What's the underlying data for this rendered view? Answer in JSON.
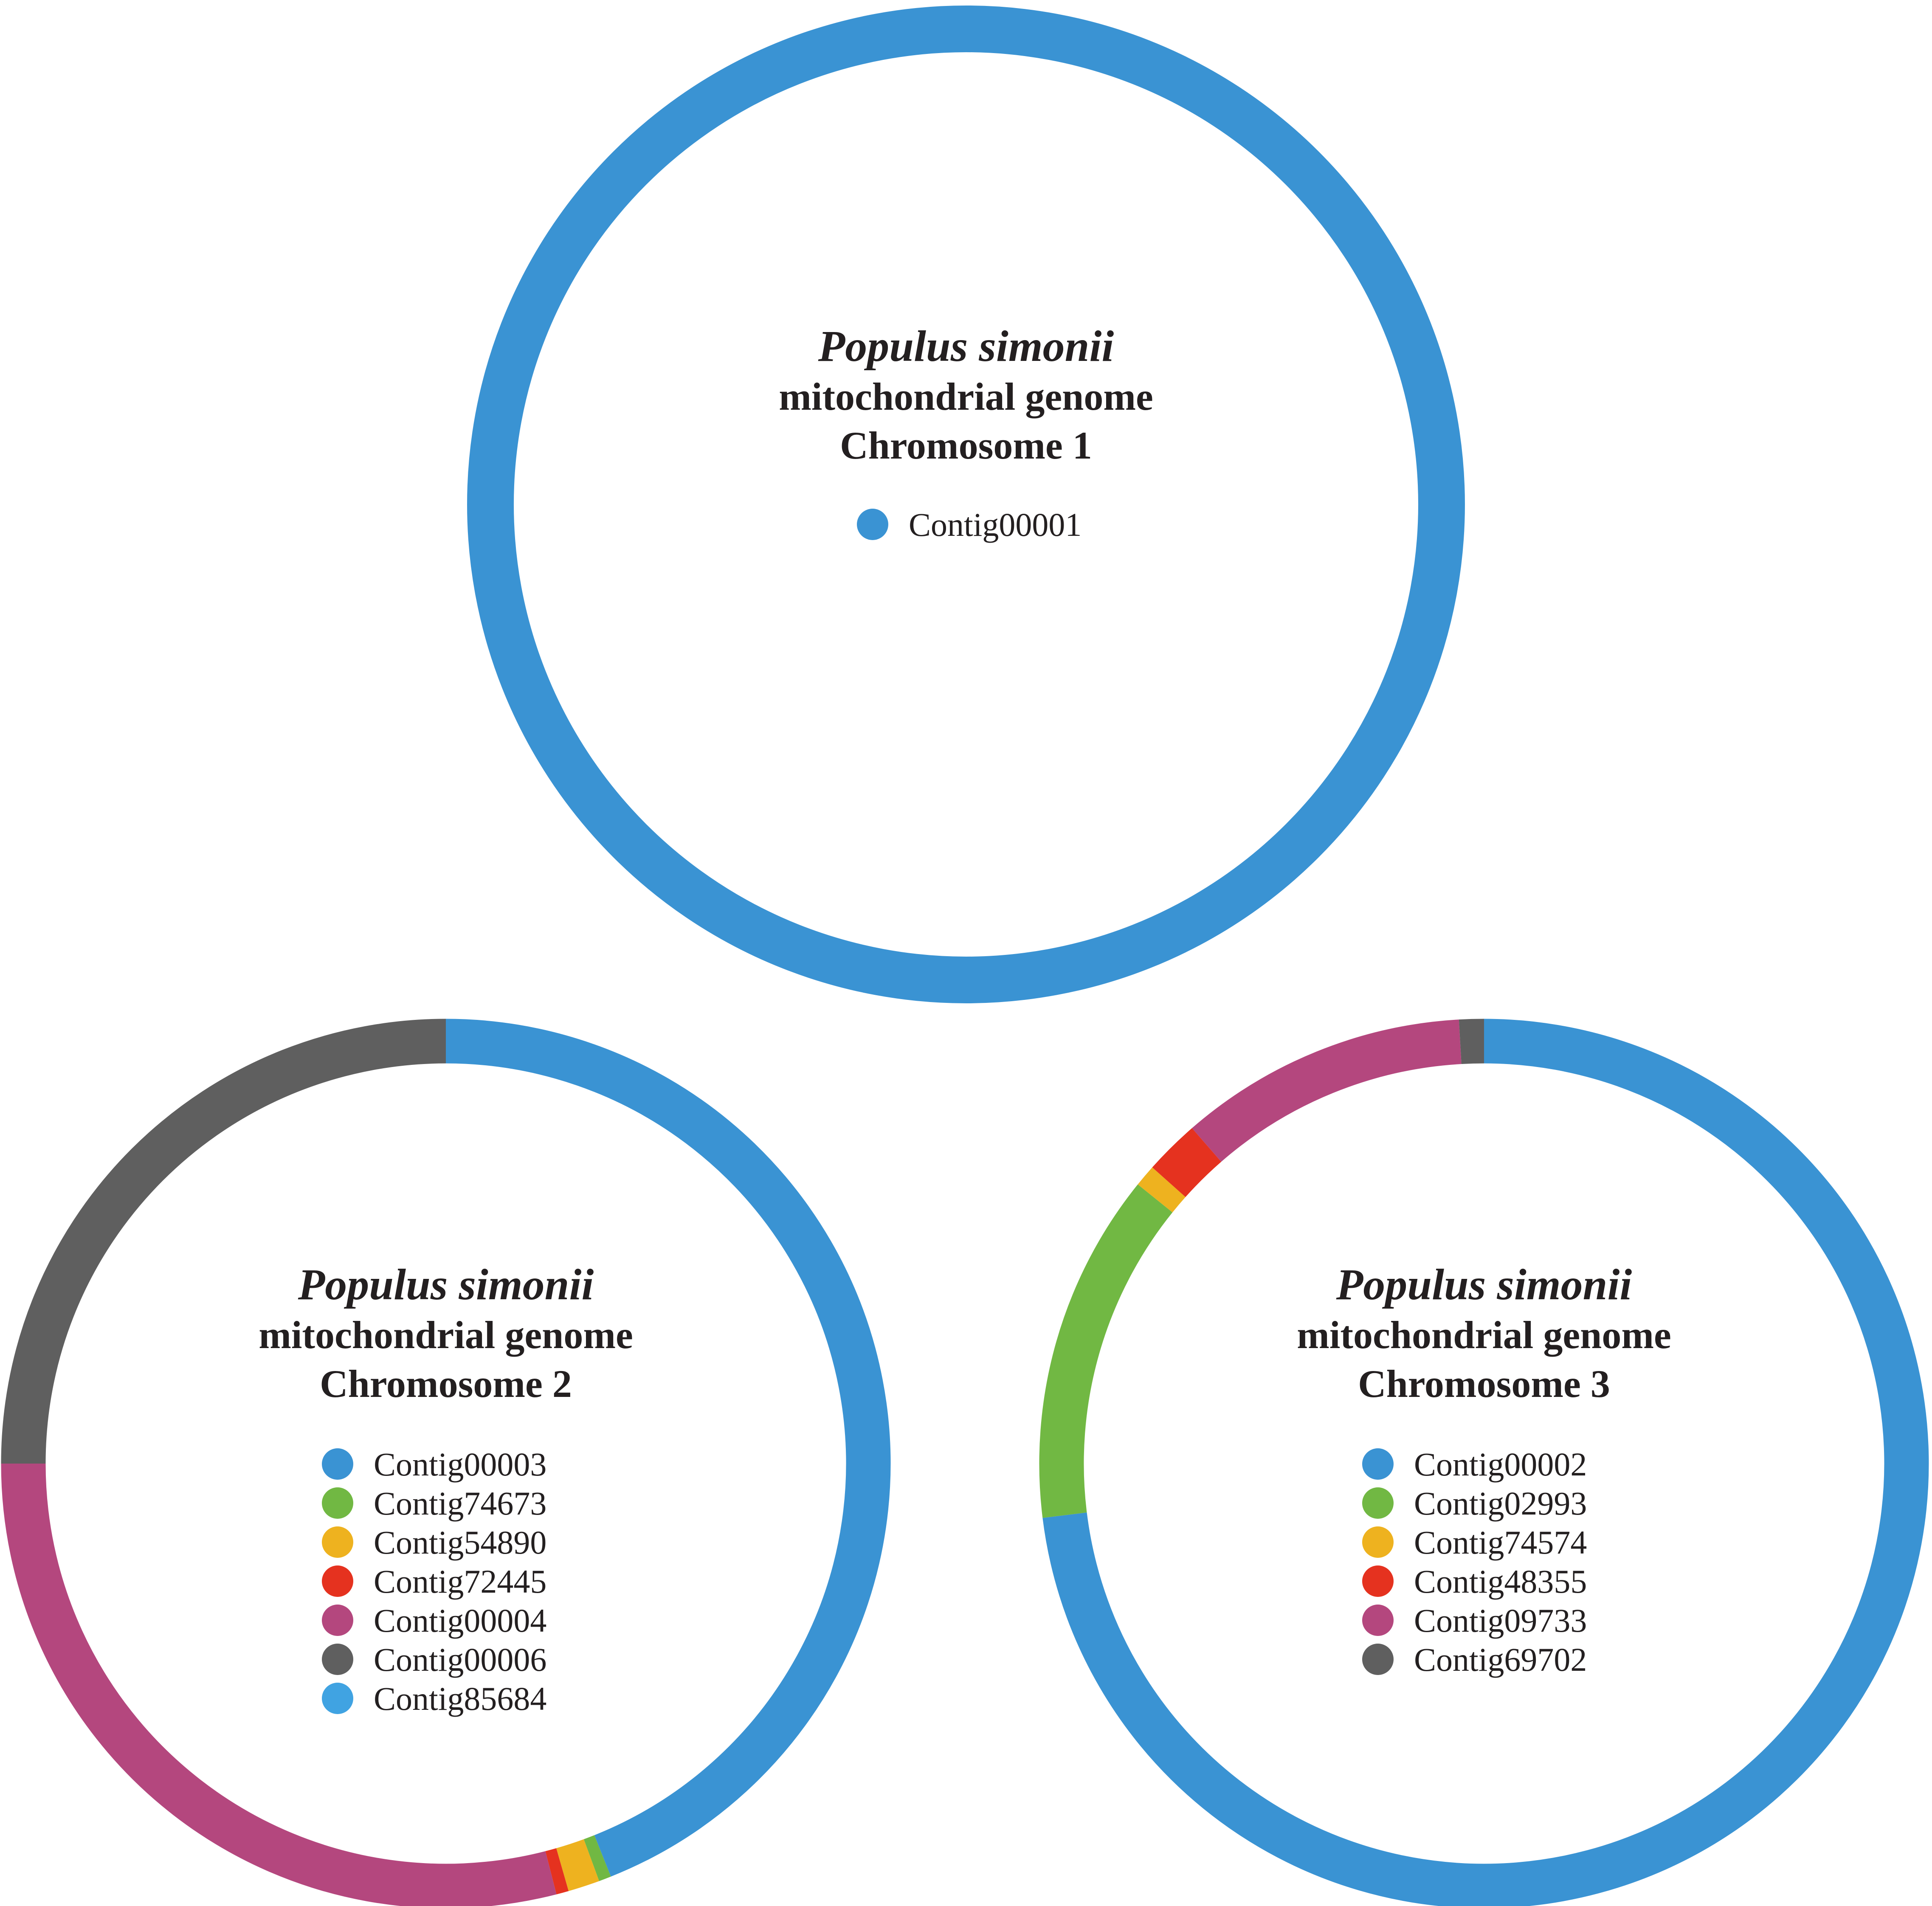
{
  "chart_data": [
    {
      "type": "pie",
      "title": "Populus simonii",
      "subtitle_lines": [
        "mitochondrial genome",
        "Chromosome 1"
      ],
      "legend": [
        {
          "name": "Contig00001",
          "color": "#3a93d3"
        }
      ],
      "segments": [
        {
          "name": "Contig00001",
          "fraction": 1.0,
          "color": "#3a93d3"
        }
      ]
    },
    {
      "type": "pie",
      "title": "Populus simonii",
      "subtitle_lines": [
        "mitochondrial genome",
        "Chromosome 2"
      ],
      "legend": [
        {
          "name": "Contig00003",
          "color": "#3a93d3"
        },
        {
          "name": "Contig74673",
          "color": "#71b843"
        },
        {
          "name": "Contig54890",
          "color": "#eeb21f"
        },
        {
          "name": "Contig72445",
          "color": "#e5321f"
        },
        {
          "name": "Contig00004",
          "color": "#b4477e"
        },
        {
          "name": "Contig00006",
          "color": "#5f5f5f"
        },
        {
          "name": "Contig85684",
          "color": "#40a3e2"
        }
      ],
      "segments": [
        {
          "name": "Contig00003",
          "fraction": 0.4395,
          "color": "#3a93d3"
        },
        {
          "name": "Contig74673",
          "fraction": 0.0045,
          "color": "#71b843"
        },
        {
          "name": "Contig54890",
          "fraction": 0.0115,
          "color": "#eeb21f"
        },
        {
          "name": "Contig72445",
          "fraction": 0.0045,
          "color": "#e5321f"
        },
        {
          "name": "Contig00004",
          "fraction": 0.29,
          "color": "#b4477e"
        },
        {
          "name": "Contig00006",
          "fraction": 0.25,
          "color": "#5f5f5f"
        }
      ]
    },
    {
      "type": "pie",
      "title": "Populus simonii",
      "subtitle_lines": [
        "mitochondrial genome",
        "Chromosome 3"
      ],
      "legend": [
        {
          "name": "Contig00002",
          "color": "#3a93d3"
        },
        {
          "name": "Contig02993",
          "color": "#71b843"
        },
        {
          "name": "Contig74574",
          "color": "#eeb21f"
        },
        {
          "name": "Contig48355",
          "color": "#e5321f"
        },
        {
          "name": "Contig09733",
          "color": "#b4477e"
        },
        {
          "name": "Contig69702",
          "color": "#5f5f5f"
        }
      ],
      "segments": [
        {
          "name": "Contig00002",
          "fraction": 0.7305,
          "color": "#3a93d3"
        },
        {
          "name": "Contig02993",
          "fraction": 0.1275,
          "color": "#71b843"
        },
        {
          "name": "Contig74574",
          "fraction": 0.008,
          "color": "#eeb21f"
        },
        {
          "name": "Contig48355",
          "fraction": 0.02,
          "color": "#e5321f"
        },
        {
          "name": "Contig09733",
          "fraction": 0.105,
          "color": "#b4477e"
        },
        {
          "name": "Contig69702",
          "fraction": 0.009,
          "color": "#5f5f5f"
        }
      ]
    }
  ]
}
